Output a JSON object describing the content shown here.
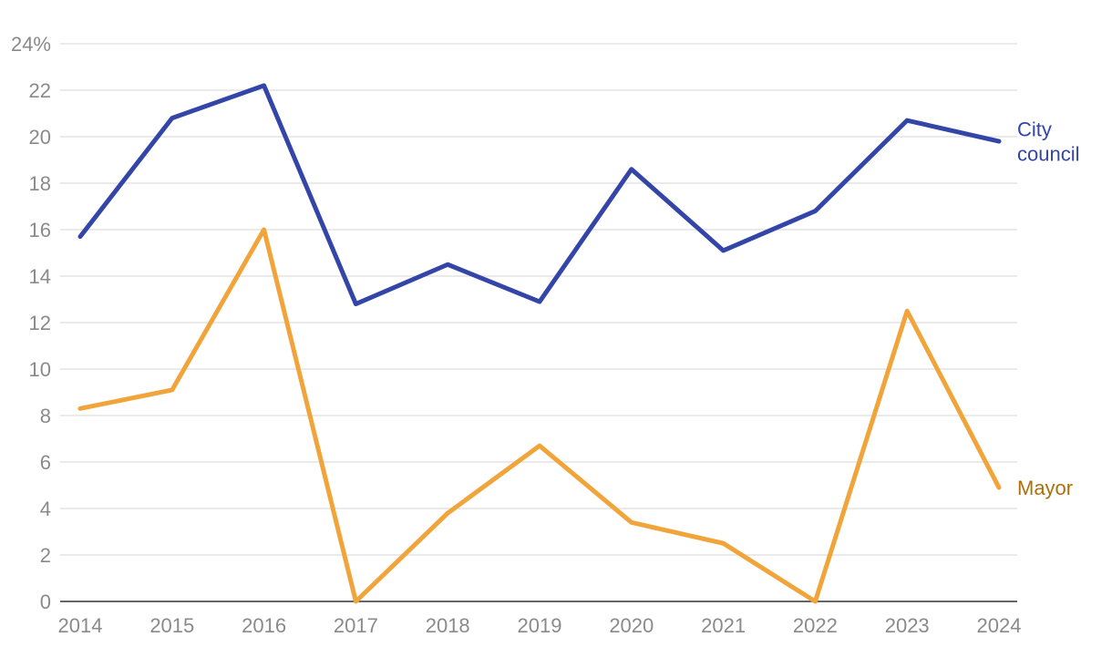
{
  "colors": {
    "city_council": "#3346a8",
    "mayor": "#f0a43a",
    "mayor_label": "#b06f0a",
    "grid": "#dedede",
    "baseline": "#333333",
    "tick_text": "#8a8a8a"
  },
  "chart_data": {
    "type": "line",
    "title": "",
    "xlabel": "",
    "ylabel": "",
    "x": [
      2014,
      2015,
      2016,
      2017,
      2018,
      2019,
      2020,
      2021,
      2022,
      2023,
      2024
    ],
    "x_tick_labels": [
      "2014",
      "2015",
      "2016",
      "2017",
      "2018",
      "2019",
      "2020",
      "2021",
      "2022",
      "2023",
      "2024"
    ],
    "ylim": [
      0,
      24
    ],
    "y_ticks": [
      0,
      2,
      4,
      6,
      8,
      10,
      12,
      14,
      16,
      18,
      20,
      22,
      24
    ],
    "y_tick_labels": [
      "0",
      "2",
      "4",
      "6",
      "8",
      "10",
      "12",
      "14",
      "16",
      "18",
      "20",
      "22",
      "24%"
    ],
    "grid": true,
    "legend": "direct-labels-right",
    "series": [
      {
        "key": "city_council",
        "name_lines": [
          "City",
          "council"
        ],
        "values": [
          15.7,
          20.8,
          22.2,
          12.8,
          14.5,
          12.9,
          18.6,
          15.1,
          16.8,
          20.7,
          19.8
        ]
      },
      {
        "key": "mayor",
        "name_lines": [
          "Mayor"
        ],
        "values": [
          8.3,
          9.1,
          16.0,
          0.0,
          3.8,
          6.7,
          3.4,
          2.5,
          0.0,
          12.5,
          4.9
        ]
      }
    ]
  }
}
